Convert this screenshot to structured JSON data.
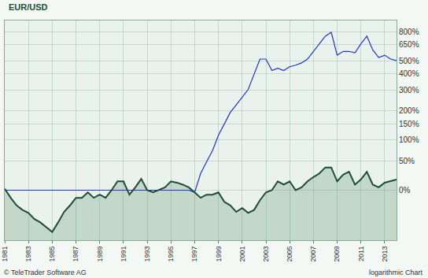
{
  "chart_data": {
    "type": "line",
    "title": "EUR/USD",
    "annotations": [
      "© TeleTrader Software AG",
      "logarithmic Chart"
    ],
    "log": "y",
    "grid": true,
    "x": [
      1981,
      1981.5,
      1982,
      1982.5,
      1983,
      1983.5,
      1984,
      1984.5,
      1985,
      1985.5,
      1986,
      1986.5,
      1987,
      1987.5,
      1988,
      1988.5,
      1989,
      1989.5,
      1990,
      1990.5,
      1991,
      1991.5,
      1992,
      1992.5,
      1993,
      1993.5,
      1994,
      1994.5,
      1995,
      1995.5,
      1996,
      1996.5,
      1997,
      1997.5,
      1998,
      1998.5,
      1999,
      1999.5,
      2000,
      2000.5,
      2001,
      2001.5,
      2002,
      2002.5,
      2003,
      2003.5,
      2004,
      2004.5,
      2005,
      2005.5,
      2006,
      2006.5,
      2007,
      2007.5,
      2008,
      2008.5,
      2009,
      2009.5,
      2010,
      2010.5,
      2011,
      2011.5,
      2012,
      2012.5,
      2013,
      2013.5,
      2014
    ],
    "series": [
      {
        "color": "#2233cc",
        "values": [
          0,
          0,
          0,
          0,
          0,
          0,
          0,
          0,
          0,
          0,
          0,
          0,
          0,
          0,
          0,
          0,
          0,
          0,
          0,
          0,
          0,
          0,
          0,
          0,
          0,
          0,
          0,
          0,
          0,
          0,
          0,
          0,
          -3,
          26,
          48,
          73,
          114,
          151,
          194,
          226,
          263,
          303,
          398,
          515,
          515,
          425,
          442,
          425,
          453,
          465,
          483,
          515,
          584,
          660,
          745,
          791,
          549,
          584,
          584,
          570,
          660,
          745,
          598,
          528,
          549,
          515,
          503
        ]
      },
      {
        "color": "#1d4d36",
        "values": [
          2,
          -10,
          -19,
          -24,
          -27,
          -33,
          -36,
          -40,
          -44,
          -36,
          -26,
          -19,
          -10,
          -10,
          -3,
          -10,
          -6,
          -10,
          0,
          13,
          13,
          -6,
          4,
          17,
          0,
          -3,
          0,
          4,
          13,
          11,
          8,
          4,
          -3,
          -10,
          -6,
          -6,
          -3,
          -15,
          -19,
          -26,
          -22,
          -27,
          -24,
          -13,
          -3,
          0,
          13,
          8,
          13,
          0,
          4,
          13,
          20,
          26,
          37,
          37,
          13,
          24,
          29,
          8,
          16,
          29,
          8,
          4,
          11,
          13,
          16
        ]
      }
    ],
    "xlim": [
      1981,
      2014
    ],
    "xticks": [
      1981,
      1983,
      1985,
      1987,
      1989,
      1991,
      1993,
      1995,
      1997,
      1999,
      2001,
      2003,
      2005,
      2007,
      2009,
      2011,
      2013
    ],
    "ylim": [
      -50,
      950
    ],
    "yticks": [
      {
        "value": 0,
        "label": "0%"
      },
      {
        "value": 50,
        "label": "50%"
      },
      {
        "value": 100,
        "label": "100%"
      },
      {
        "value": 150,
        "label": "150%"
      },
      {
        "value": 200,
        "label": "200%"
      },
      {
        "value": 300,
        "label": "300%"
      },
      {
        "value": 400,
        "label": "400%"
      },
      {
        "value": 500,
        "label": "500%"
      },
      {
        "value": 650,
        "label": "650%"
      },
      {
        "value": 800,
        "label": "800%"
      }
    ]
  }
}
